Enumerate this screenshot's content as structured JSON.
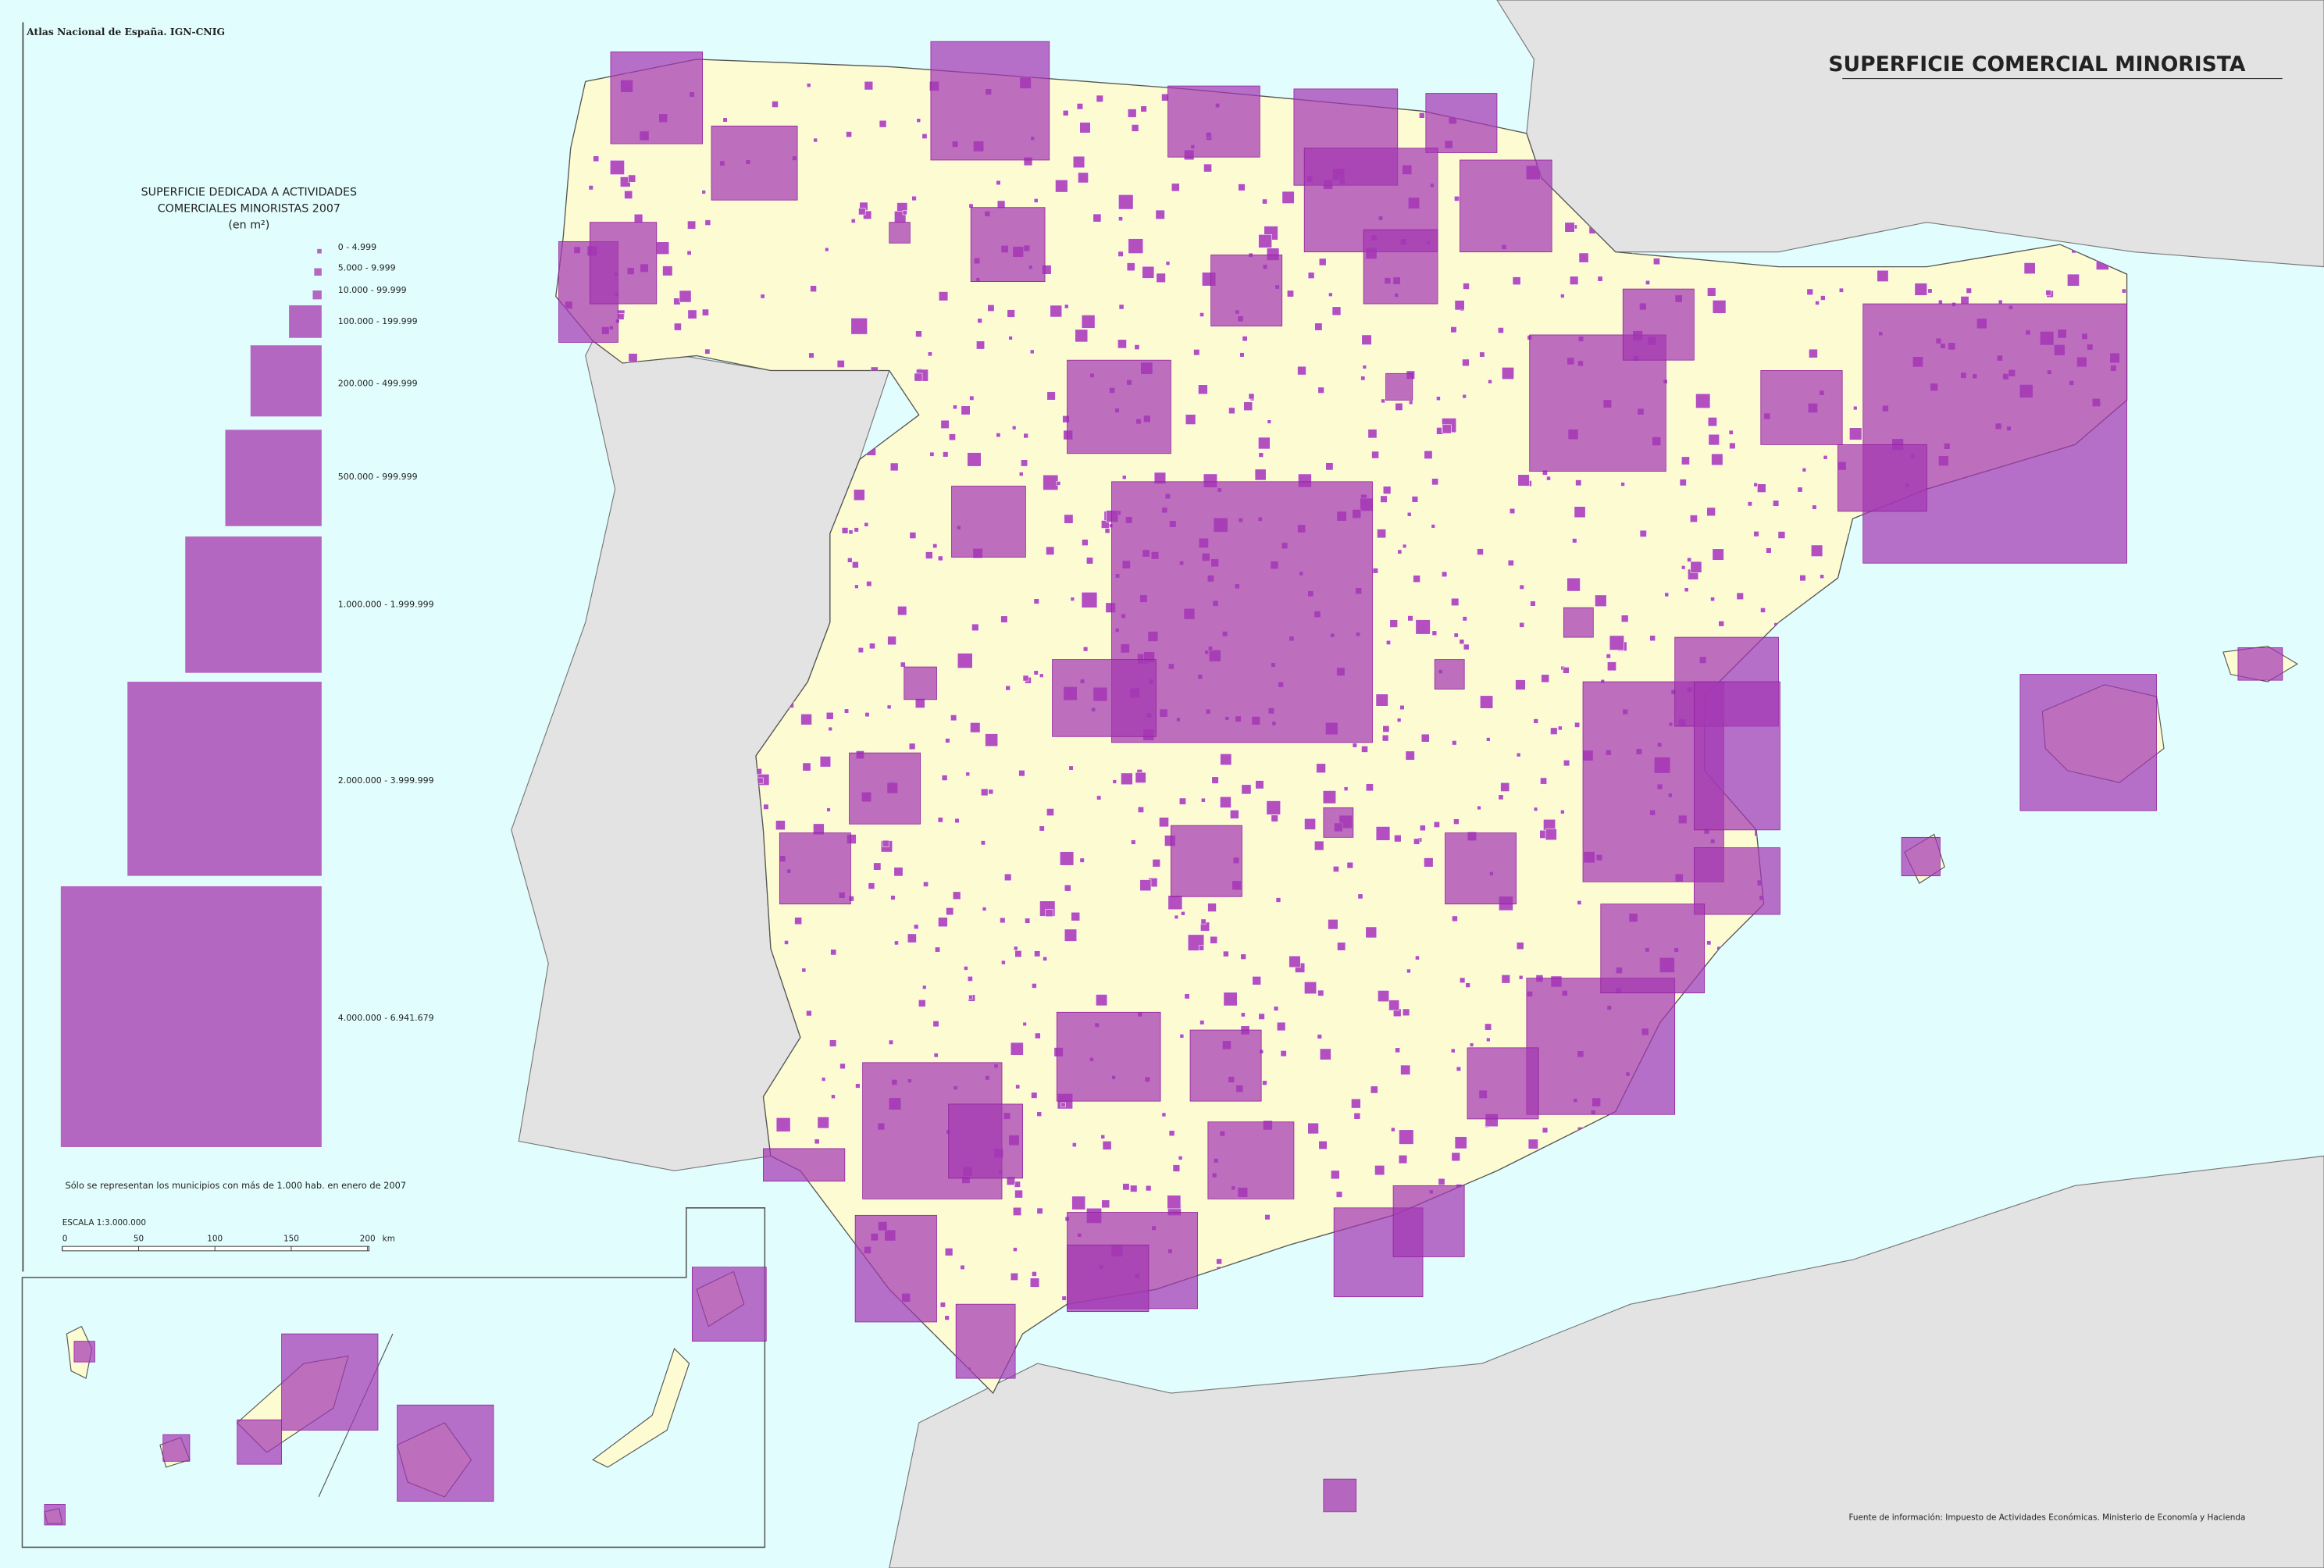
{
  "credit": "Atlas Nacional de España. IGN-CNIG",
  "title": "SUPERFICIE COMERCIAL MINORISTA",
  "legend": {
    "title": [
      "SUPERFICIE DEDICADA A ACTIVIDADES",
      "COMERCIALES MINORISTAS 2007",
      "(en m²)"
    ],
    "classes": [
      "0 - 4.999",
      "5.000 - 9.999",
      "10.000 - 99.999",
      "100.000 - 199.999",
      "200.000 - 499.999",
      "500.000 - 999.999",
      "1.000.000 - 1.999.999",
      "2.000.000 - 3.999.999",
      "4.000.000 - 6.941.679"
    ]
  },
  "note": "Sólo se representan los municipios con más de 1.000 hab. en enero de 2007",
  "scale": {
    "label": "ESCALA 1:3.000.000",
    "ticks": [
      "0",
      "50",
      "100",
      "150",
      "200"
    ],
    "unit": "km"
  },
  "source": "Fuente de información: Impuesto de Actividades Económicas. Ministerio de Economía y Hacienda"
}
